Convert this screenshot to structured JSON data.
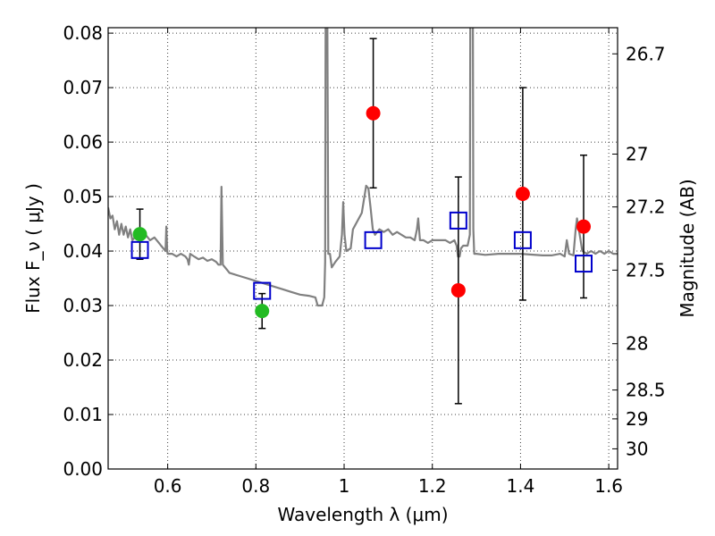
{
  "chart_data": {
    "type": "scatter",
    "xlabel": "Wavelength  λ (μm)",
    "ylabel": "Flux  F_ν  ( μJy )",
    "y2label": "Magnitude (AB)",
    "xlim": [
      0.465,
      1.62
    ],
    "ylim": [
      0.0,
      0.081
    ],
    "grid": true,
    "x_ticks": [
      0.6,
      0.8,
      1.0,
      1.2,
      1.4,
      1.6
    ],
    "x_tick_labels": [
      "0.6",
      "0.8",
      "1",
      "1.2",
      "1.4",
      "1.6"
    ],
    "y_ticks": [
      0.0,
      0.01,
      0.02,
      0.03,
      0.04,
      0.05,
      0.06,
      0.07,
      0.08
    ],
    "y_tick_labels": [
      "0.00",
      "0.01",
      "0.02",
      "0.03",
      "0.04",
      "0.05",
      "0.06",
      "0.07",
      "0.08"
    ],
    "magnitude_ticks": [
      {
        "label": "26.7",
        "flux": 0.0762
      },
      {
        "label": "27",
        "flux": 0.0578
      },
      {
        "label": "27.2",
        "flux": 0.0481
      },
      {
        "label": "27.5",
        "flux": 0.0365
      },
      {
        "label": "28",
        "flux": 0.023
      },
      {
        "label": "28.5",
        "flux": 0.0145
      },
      {
        "label": "29",
        "flux": 0.0092
      },
      {
        "label": "30",
        "flux": 0.0037
      }
    ],
    "colors": {
      "spectrum": "#808080",
      "optical_points": "#22bb22",
      "nir_points": "#ff0000",
      "model_points": "#0000cc",
      "errorbar": "#000000"
    },
    "series": [
      {
        "name": "model spectrum",
        "kind": "line",
        "points": [
          [
            0.465,
            0.048
          ],
          [
            0.47,
            0.046
          ],
          [
            0.475,
            0.0465
          ],
          [
            0.48,
            0.044
          ],
          [
            0.485,
            0.0455
          ],
          [
            0.49,
            0.043
          ],
          [
            0.495,
            0.045
          ],
          [
            0.5,
            0.043
          ],
          [
            0.505,
            0.0445
          ],
          [
            0.51,
            0.0425
          ],
          [
            0.515,
            0.044
          ],
          [
            0.52,
            0.042
          ],
          [
            0.53,
            0.043
          ],
          [
            0.54,
            0.0425
          ],
          [
            0.55,
            0.043
          ],
          [
            0.56,
            0.042
          ],
          [
            0.57,
            0.0425
          ],
          [
            0.58,
            0.0415
          ],
          [
            0.585,
            0.041
          ],
          [
            0.59,
            0.0405
          ],
          [
            0.595,
            0.04
          ],
          [
            0.597,
            0.0445
          ],
          [
            0.599,
            0.04
          ],
          [
            0.6,
            0.0395
          ],
          [
            0.61,
            0.0395
          ],
          [
            0.62,
            0.039
          ],
          [
            0.63,
            0.0395
          ],
          [
            0.64,
            0.039
          ],
          [
            0.645,
            0.0385
          ],
          [
            0.648,
            0.0375
          ],
          [
            0.651,
            0.0395
          ],
          [
            0.66,
            0.039
          ],
          [
            0.67,
            0.0385
          ],
          [
            0.68,
            0.0388
          ],
          [
            0.69,
            0.0382
          ],
          [
            0.7,
            0.0385
          ],
          [
            0.71,
            0.038
          ],
          [
            0.715,
            0.0375
          ],
          [
            0.72,
            0.0375
          ],
          [
            0.722,
            0.0518
          ],
          [
            0.725,
            0.0375
          ],
          [
            0.73,
            0.037
          ],
          [
            0.74,
            0.036
          ],
          [
            0.76,
            0.0355
          ],
          [
            0.78,
            0.035
          ],
          [
            0.8,
            0.0345
          ],
          [
            0.82,
            0.034
          ],
          [
            0.84,
            0.0335
          ],
          [
            0.86,
            0.033
          ],
          [
            0.88,
            0.0325
          ],
          [
            0.9,
            0.032
          ],
          [
            0.92,
            0.0318
          ],
          [
            0.935,
            0.0315
          ],
          [
            0.94,
            0.03
          ],
          [
            0.95,
            0.03
          ],
          [
            0.955,
            0.0315
          ],
          [
            0.957,
            0.038
          ],
          [
            0.958,
            0.082
          ],
          [
            0.962,
            0.082
          ],
          [
            0.964,
            0.0395
          ],
          [
            0.968,
            0.0395
          ],
          [
            0.972,
            0.037
          ],
          [
            0.98,
            0.038
          ],
          [
            0.99,
            0.039
          ],
          [
            0.995,
            0.043
          ],
          [
            0.998,
            0.049
          ],
          [
            1.001,
            0.043
          ],
          [
            1.005,
            0.04
          ],
          [
            1.015,
            0.0405
          ],
          [
            1.02,
            0.044
          ],
          [
            1.04,
            0.047
          ],
          [
            1.05,
            0.052
          ],
          [
            1.055,
            0.0515
          ],
          [
            1.06,
            0.048
          ],
          [
            1.065,
            0.044
          ],
          [
            1.07,
            0.043
          ],
          [
            1.08,
            0.044
          ],
          [
            1.09,
            0.0435
          ],
          [
            1.1,
            0.044
          ],
          [
            1.11,
            0.043
          ],
          [
            1.12,
            0.0435
          ],
          [
            1.13,
            0.043
          ],
          [
            1.14,
            0.0425
          ],
          [
            1.15,
            0.0425
          ],
          [
            1.16,
            0.042
          ],
          [
            1.165,
            0.044
          ],
          [
            1.168,
            0.046
          ],
          [
            1.172,
            0.042
          ],
          [
            1.18,
            0.042
          ],
          [
            1.19,
            0.0415
          ],
          [
            1.2,
            0.042
          ],
          [
            1.21,
            0.042
          ],
          [
            1.22,
            0.042
          ],
          [
            1.23,
            0.042
          ],
          [
            1.24,
            0.0415
          ],
          [
            1.25,
            0.042
          ],
          [
            1.255,
            0.041
          ],
          [
            1.258,
            0.039
          ],
          [
            1.262,
            0.039
          ],
          [
            1.265,
            0.0405
          ],
          [
            1.27,
            0.041
          ],
          [
            1.28,
            0.041
          ],
          [
            1.285,
            0.043
          ],
          [
            1.286,
            0.082
          ],
          [
            1.292,
            0.082
          ],
          [
            1.293,
            0.044
          ],
          [
            1.295,
            0.0395
          ],
          [
            1.3,
            0.0395
          ],
          [
            1.32,
            0.0393
          ],
          [
            1.35,
            0.0395
          ],
          [
            1.4,
            0.0395
          ],
          [
            1.45,
            0.0392
          ],
          [
            1.47,
            0.0392
          ],
          [
            1.49,
            0.0395
          ],
          [
            1.5,
            0.039
          ],
          [
            1.505,
            0.042
          ],
          [
            1.51,
            0.0395
          ],
          [
            1.52,
            0.0392
          ],
          [
            1.525,
            0.044
          ],
          [
            1.528,
            0.046
          ],
          [
            1.535,
            0.0425
          ],
          [
            1.54,
            0.04
          ],
          [
            1.55,
            0.0395
          ],
          [
            1.56,
            0.04
          ],
          [
            1.57,
            0.0395
          ],
          [
            1.58,
            0.04
          ],
          [
            1.59,
            0.0395
          ],
          [
            1.6,
            0.04
          ],
          [
            1.61,
            0.0395
          ],
          [
            1.62,
            0.0395
          ]
        ]
      },
      {
        "name": "optical photometry",
        "kind": "circle",
        "color": "#22bb22",
        "points": [
          {
            "x": 0.537,
            "y": 0.0431,
            "err_low": 0.0046,
            "err_high": 0.0046
          },
          {
            "x": 0.814,
            "y": 0.029,
            "err_low": 0.0032,
            "err_high": 0.0032
          }
        ]
      },
      {
        "name": "NIR photometry",
        "kind": "circle",
        "color": "#ff0000",
        "points": [
          {
            "x": 1.066,
            "y": 0.0653,
            "err_low": 0.0137,
            "err_high": 0.0137
          },
          {
            "x": 1.259,
            "y": 0.0328,
            "err_low": 0.0208,
            "err_high": 0.0208
          },
          {
            "x": 1.405,
            "y": 0.0505,
            "err_low": 0.0195,
            "err_high": 0.0195
          },
          {
            "x": 1.543,
            "y": 0.0445,
            "err_low": 0.0131,
            "err_high": 0.0131
          }
        ]
      },
      {
        "name": "model photometry",
        "kind": "square",
        "color": "#0000cc",
        "points": [
          {
            "x": 0.537,
            "y": 0.0402
          },
          {
            "x": 0.814,
            "y": 0.0327
          },
          {
            "x": 1.066,
            "y": 0.042
          },
          {
            "x": 1.259,
            "y": 0.0456
          },
          {
            "x": 1.405,
            "y": 0.042
          },
          {
            "x": 1.543,
            "y": 0.0377
          }
        ]
      }
    ]
  }
}
